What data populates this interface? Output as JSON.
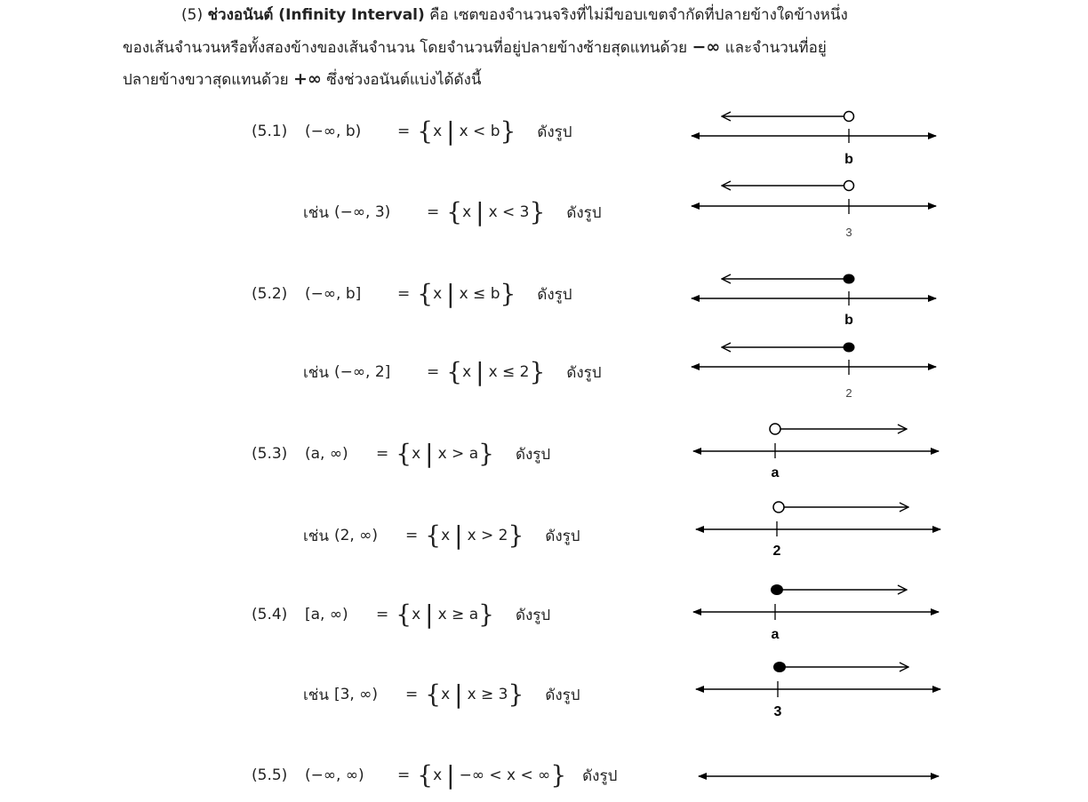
{
  "intro": {
    "number": "(5)",
    "term_bold": "ช่วงอนันต์ (Infinity Interval)",
    "line1_rest": " คือ เซตของจำนวนจริงที่ไม่มีขอบเขตจำกัดที่ปลายข้างใดข้างหนึ่ง",
    "line2_a": "ของเส้นจำนวนหรือทั้งสองข้างของเส้นจำนวน โดยจำนวนที่อยู่ปลายข้างซ้ายสุดแทนด้วย ",
    "neg_inf": "−∞",
    "line2_b": " และจำนวนที่อยู่",
    "line3_a": "ปลายข้างขวาสุดแทนด้วย ",
    "pos_inf": "+∞",
    "line3_b": " ซึ่งช่วงอนันต์แบ่งได้ดังนี้"
  },
  "rows": [
    {
      "num": "(5.1)",
      "interval": "(−∞, b)",
      "set_var": "x",
      "condition": "x < b",
      "shown": "ดังรูป",
      "tick_label": "b"
    },
    {
      "prefix": "เช่น",
      "interval": "(−∞, 3)",
      "set_var": "x",
      "condition": "x < 3",
      "shown": "ดังรูป",
      "tick_label": "3"
    },
    {
      "num": "(5.2)",
      "interval": "(−∞, b]",
      "set_var": "x",
      "condition": "x ≤ b",
      "shown": "ดังรูป",
      "tick_label": "b"
    },
    {
      "prefix": "เช่น",
      "interval": "(−∞, 2]",
      "set_var": "x",
      "condition": "x ≤ 2",
      "shown": "ดังรูป",
      "tick_label": "2"
    },
    {
      "num": "(5.3)",
      "interval": "(a, ∞)",
      "set_var": "x",
      "condition": "x > a",
      "shown": "ดังรูป",
      "tick_label": "a"
    },
    {
      "prefix": "เช่น",
      "interval": "(2, ∞)",
      "set_var": "x",
      "condition": "x > 2",
      "shown": "ดังรูป",
      "tick_label": "2"
    },
    {
      "num": "(5.4)",
      "interval": "[a, ∞)",
      "set_var": "x",
      "condition": "x ≥ a",
      "shown": "ดังรูป",
      "tick_label": "a"
    },
    {
      "prefix": "เช่น",
      "interval": "[3, ∞)",
      "set_var": "x",
      "condition": "x ≥ 3",
      "shown": "ดังรูป",
      "tick_label": "3"
    },
    {
      "num": "(5.5)",
      "interval": "(−∞, ∞)",
      "set_var": "x",
      "condition": "−∞ < x < ∞",
      "shown": "ดังรูป"
    }
  ]
}
